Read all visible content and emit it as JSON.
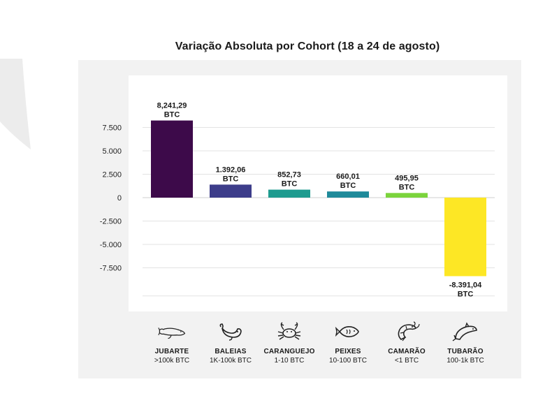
{
  "chart_data": {
    "type": "bar",
    "title": "Variação Absoluta por Cohort (18 a 24 de agosto)",
    "xlabel": "",
    "ylabel": "",
    "ylim": [
      -9000,
      9500
    ],
    "yticks": [
      7500,
      5000,
      2500,
      0,
      -2500,
      -5000,
      -7500
    ],
    "ytick_labels": [
      "7.500",
      "5.000",
      "2.500",
      "0",
      "-2.500",
      "-5.000",
      "-7.500"
    ],
    "grid": true,
    "categories": [
      "JUBARTE",
      "BALEIAS",
      "CARANGUEJO",
      "PEIXES",
      "CAMARÃO",
      "TUBARÃO"
    ],
    "category_ranges": [
      ">100k BTC",
      "1K-100k BTC",
      "1-10 BTC",
      "10-100 BTC",
      "<1 BTC",
      "100-1k BTC"
    ],
    "values": [
      8241.29,
      1392.06,
      852.73,
      660.01,
      495.95,
      -8391.04
    ],
    "data_labels": [
      "8,241,29",
      "1.392,06",
      "852,73",
      "660,01",
      "495,95",
      "-8.391,04"
    ],
    "unit": "BTC",
    "colors": [
      "#3d0a4a",
      "#3d3d8a",
      "#1e9b8f",
      "#1f8a9a",
      "#7bd43c",
      "#fde725"
    ]
  },
  "cohorts": [
    {
      "icon": "humpback-whale-icon",
      "name": "JUBARTE",
      "range": ">100k BTC"
    },
    {
      "icon": "whale-icon",
      "name": "BALEIAS",
      "range": "1K-100k BTC"
    },
    {
      "icon": "crab-icon",
      "name": "CARANGUEJO",
      "range": "1-10 BTC"
    },
    {
      "icon": "fish-icon",
      "name": "PEIXES",
      "range": "10-100 BTC"
    },
    {
      "icon": "shrimp-icon",
      "name": "CAMARÃO",
      "range": "<1 BTC"
    },
    {
      "icon": "shark-icon",
      "name": "TUBARÃO",
      "range": "100-1k BTC"
    }
  ]
}
